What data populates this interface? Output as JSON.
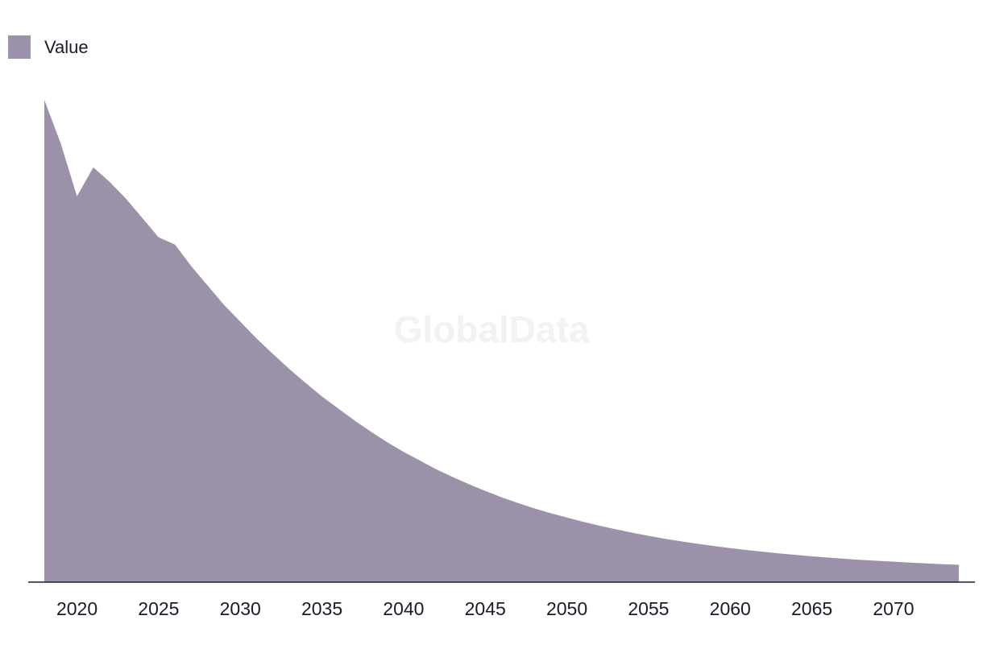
{
  "legend": {
    "label": "Value",
    "color": "#9b92aa"
  },
  "watermark": "GlobalData",
  "colors": {
    "area": "#9b92aa",
    "axis": "#1c1a2a"
  },
  "chart_data": {
    "type": "area",
    "title": "",
    "xlabel": "",
    "ylabel": "",
    "grid": false,
    "legend_position": "top-left",
    "xlim": [
      2018,
      2074
    ],
    "ylim": [
      0,
      100
    ],
    "xticks": [
      "2020",
      "2025",
      "2030",
      "2035",
      "2040",
      "2045",
      "2050",
      "2055",
      "2060",
      "2065",
      "2070"
    ],
    "series": [
      {
        "name": "Value",
        "x": [
          2018,
          2019,
          2020,
          2021,
          2022,
          2023,
          2024,
          2025,
          2026,
          2027,
          2028,
          2029,
          2030,
          2031,
          2032,
          2033,
          2034,
          2035,
          2036,
          2037,
          2038,
          2039,
          2040,
          2041,
          2042,
          2043,
          2044,
          2045,
          2046,
          2047,
          2048,
          2049,
          2050,
          2051,
          2052,
          2053,
          2054,
          2055,
          2056,
          2057,
          2058,
          2059,
          2060,
          2061,
          2062,
          2063,
          2064,
          2065,
          2066,
          2067,
          2068,
          2069,
          2070,
          2071,
          2072,
          2073,
          2074
        ],
        "values": [
          100,
          91,
          80,
          86,
          83,
          79.5,
          75.5,
          71.5,
          70,
          65.5,
          61.5,
          57.5,
          54,
          50.5,
          47.3,
          44.2,
          41.3,
          38.5,
          36,
          33.5,
          31.2,
          29,
          27,
          25.2,
          23.4,
          21.8,
          20.3,
          18.9,
          17.6,
          16.4,
          15.3,
          14.3,
          13.4,
          12.5,
          11.7,
          10.95,
          10.25,
          9.6,
          9.0,
          8.45,
          7.95,
          7.5,
          7.05,
          6.65,
          6.3,
          5.95,
          5.65,
          5.35,
          5.1,
          4.85,
          4.62,
          4.42,
          4.23,
          4.05,
          3.88,
          3.72,
          3.58
        ]
      }
    ]
  }
}
